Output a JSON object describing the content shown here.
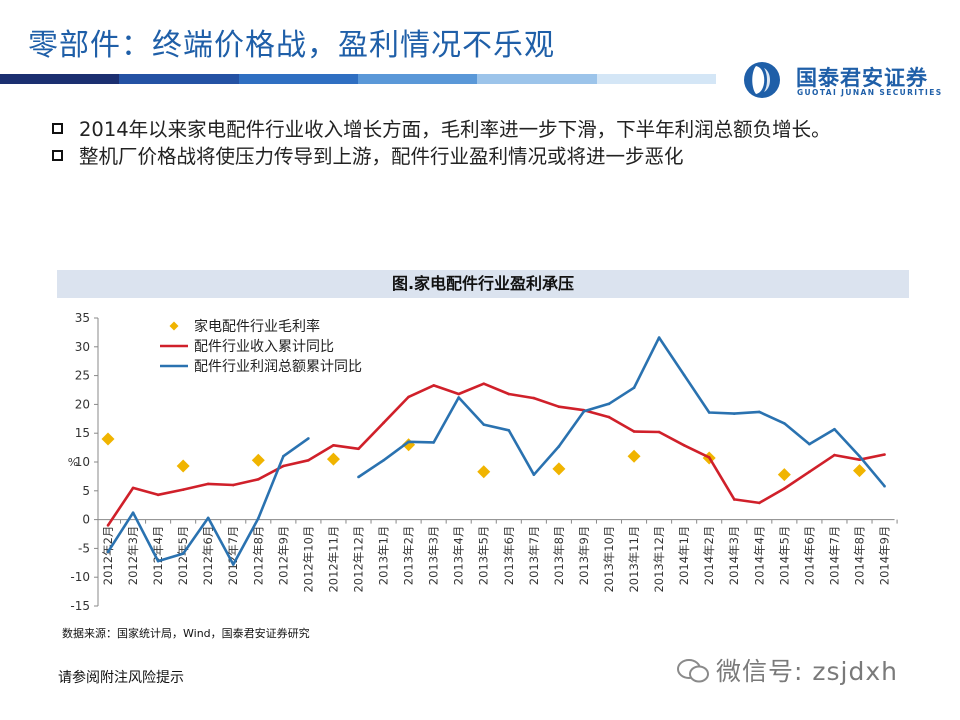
{
  "page": {
    "title": "零部件：终端价格战，盈利情况不乐观",
    "bullets": [
      "2014年以来家电配件行业收入增长方面，毛利率进一步下滑，下半年利润总额负增长。",
      "整机厂价格战将使压力传导到上游，配件行业盈利情况或将进一步恶化"
    ],
    "source": "数据来源：国家统计局，Wind，国泰君安证券研究",
    "risk_note": "请参阅附注风险提示",
    "watermark": "微信号: zsjdxh",
    "logo": {
      "name": "国泰君安证券",
      "english": "GUOTAI  JUNAN  SECURITIES"
    }
  },
  "colors": {
    "title": "#1f5fa8",
    "stripe": [
      "#1b2f70",
      "#2452a4",
      "#2f6fc2",
      "#5a98d8",
      "#9cc4ea",
      "#d4e6f6"
    ],
    "revenue": "#d0202a",
    "profit": "#2a72b0",
    "margin": "#f0b400"
  },
  "chart_data": {
    "type": "line",
    "title": "图.家电配件行业盈利承压",
    "ylabel": "%",
    "xlabel": "",
    "ylim": [
      -15,
      35
    ],
    "yticks": [
      35,
      30,
      25,
      20,
      15,
      10,
      5,
      0,
      -5,
      -10,
      -15
    ],
    "categories": [
      "2012年2月",
      "2012年3月",
      "2012年4月",
      "2012年5月",
      "2012年6月",
      "2012年7月",
      "2012年8月",
      "2012年9月",
      "2012年10月",
      "2012年11月",
      "2012年12月",
      "2013年1月",
      "2013年2月",
      "2013年3月",
      "2013年4月",
      "2013年5月",
      "2013年6月",
      "2013年7月",
      "2013年8月",
      "2013年9月",
      "2013年10月",
      "2013年11月",
      "2013年12月",
      "2014年1月",
      "2014年2月",
      "2014年3月",
      "2014年4月",
      "2014年5月",
      "2014年6月",
      "2014年7月",
      "2014年8月",
      "2014年9月"
    ],
    "series": [
      {
        "name": "家电配件行业毛利率",
        "kind": "scatter",
        "color": "#f0b400",
        "points": [
          [
            0,
            14.0
          ],
          [
            3,
            9.3
          ],
          [
            6,
            10.3
          ],
          [
            9,
            10.5
          ],
          [
            12,
            13.0
          ],
          [
            15,
            8.3
          ],
          [
            18,
            8.8
          ],
          [
            21,
            11.0
          ],
          [
            24,
            10.7
          ],
          [
            27,
            7.8
          ],
          [
            30,
            8.5
          ]
        ]
      },
      {
        "name": "配件行业收入累计同比",
        "kind": "line",
        "color": "#d0202a",
        "values": [
          -1.0,
          5.5,
          4.3,
          5.2,
          6.2,
          6.0,
          7.0,
          9.3,
          10.3,
          12.9,
          12.3,
          16.8,
          21.3,
          23.3,
          21.8,
          23.6,
          21.8,
          21.1,
          19.6,
          19.0,
          17.8,
          15.3,
          15.2,
          12.9,
          10.8,
          3.5,
          2.9,
          5.4,
          8.3,
          11.2,
          10.4,
          11.3
        ]
      },
      {
        "name": "配件行业利润总额累计同比",
        "kind": "line",
        "color": "#2a72b0",
        "values": [
          -5.6,
          1.2,
          -7.2,
          -5.9,
          0.3,
          -7.8,
          0.2,
          11.0,
          14.1,
          null,
          7.4,
          10.3,
          13.5,
          13.4,
          21.2,
          16.5,
          15.5,
          7.8,
          12.7,
          18.8,
          20.1,
          22.9,
          31.6,
          25.1,
          18.6,
          18.4,
          18.7,
          16.7,
          13.1,
          15.7,
          11.0,
          5.8
        ]
      }
    ],
    "legend": "top-left"
  }
}
